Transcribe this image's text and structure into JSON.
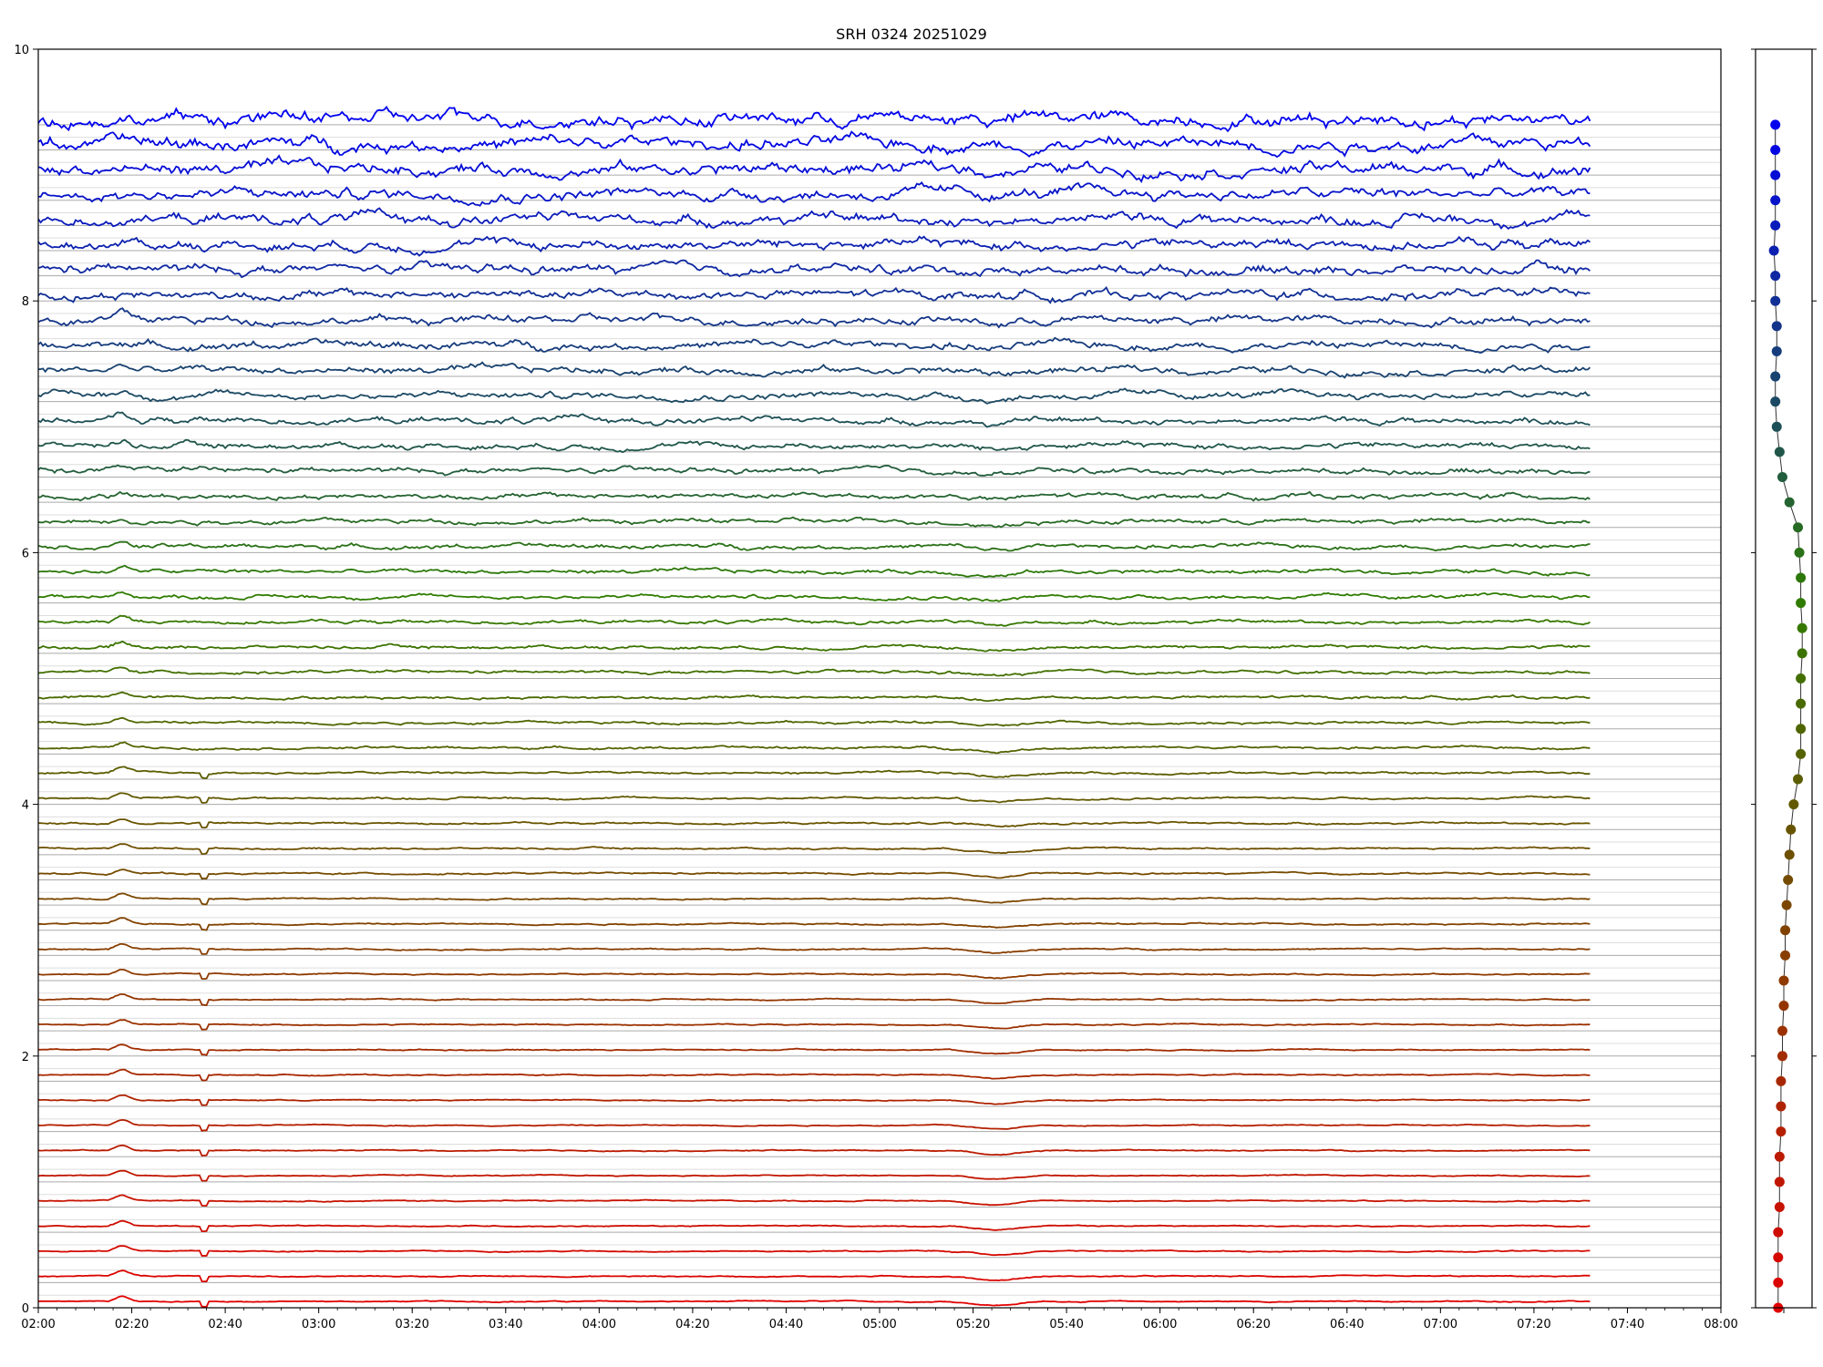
{
  "chart_data": [
    {
      "type": "line",
      "title": "SRH 0324 20251029",
      "xlabel": "",
      "ylabel": "",
      "xlim": [
        "02:00",
        "08:00"
      ],
      "ylim": [
        0,
        10
      ],
      "x_ticks": [
        "02:00",
        "02:20",
        "02:40",
        "03:00",
        "03:20",
        "03:40",
        "04:00",
        "04:20",
        "04:40",
        "05:00",
        "05:20",
        "05:40",
        "06:00",
        "06:20",
        "06:40",
        "07:00",
        "07:20",
        "07:40",
        "08:00"
      ],
      "y_ticks": [
        "0",
        "2",
        "4",
        "6",
        "8",
        "10"
      ],
      "grid": "horizontal lines at each channel baseline",
      "data_end": "07:32",
      "colors": {
        "low": "#e00000",
        "mid": "#2e7d00",
        "high": "#0000ee",
        "gridline": "#aaaaaa"
      },
      "series_baselines": [
        0.05,
        0.25,
        0.45,
        0.65,
        0.85,
        1.05,
        1.25,
        1.45,
        1.65,
        1.85,
        2.05,
        2.25,
        2.45,
        2.65,
        2.85,
        3.05,
        3.25,
        3.45,
        3.65,
        3.85,
        4.05,
        4.25,
        4.45,
        4.65,
        4.85,
        5.05,
        5.25,
        5.45,
        5.65,
        5.85,
        6.05,
        6.25,
        6.45,
        6.65,
        6.85,
        7.05,
        7.25,
        7.45,
        7.65,
        7.85,
        8.05,
        8.25,
        8.45,
        8.65,
        8.85,
        9.05,
        9.25,
        9.45
      ]
    },
    {
      "type": "scatter",
      "description_points": "one marker per channel, same vertical scale",
      "ylim": [
        0,
        10
      ],
      "points_y": [
        0.0,
        0.2,
        0.4,
        0.6,
        0.8,
        1.0,
        1.2,
        1.4,
        1.6,
        1.8,
        2.0,
        2.2,
        2.4,
        2.6,
        2.8,
        3.0,
        3.2,
        3.4,
        3.6,
        3.8,
        4.0,
        4.2,
        4.4,
        4.6,
        4.8,
        5.0,
        5.2,
        5.4,
        5.6,
        5.8,
        6.0,
        6.2,
        6.4,
        6.6,
        6.8,
        7.0,
        7.2,
        7.4,
        7.6,
        7.8,
        8.0,
        8.2,
        8.4,
        8.6,
        8.8,
        9.0,
        9.2,
        9.4
      ],
      "points_x": [
        0.3,
        0.3,
        0.3,
        0.3,
        0.35,
        0.35,
        0.35,
        0.4,
        0.4,
        0.4,
        0.45,
        0.45,
        0.5,
        0.5,
        0.55,
        0.55,
        0.6,
        0.65,
        0.7,
        0.75,
        0.85,
        1.0,
        1.1,
        1.1,
        1.1,
        1.1,
        1.15,
        1.15,
        1.1,
        1.1,
        1.05,
        1.0,
        0.7,
        0.45,
        0.35,
        0.25,
        0.2,
        0.2,
        0.25,
        0.25,
        0.2,
        0.2,
        0.15,
        0.2,
        0.2,
        0.2,
        0.2,
        0.2
      ],
      "xlim": [
        -0.5,
        1.5
      ]
    }
  ]
}
